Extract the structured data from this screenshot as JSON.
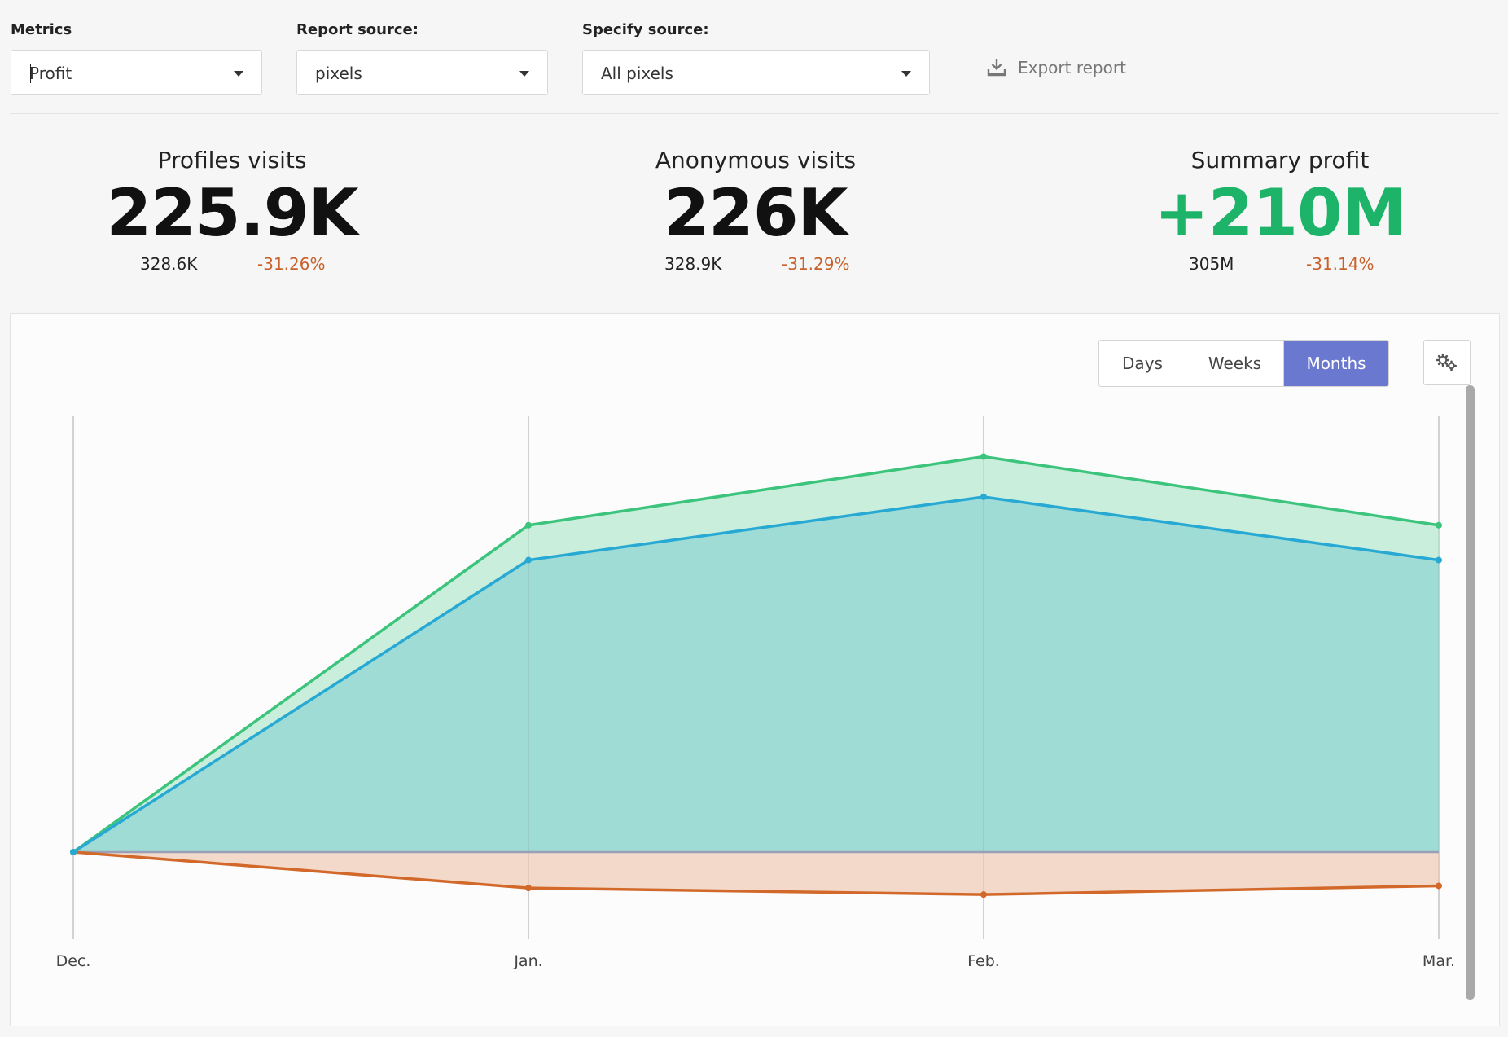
{
  "filters": {
    "metrics": {
      "label": "Metrics",
      "value": "Profit"
    },
    "report_source": {
      "label": "Report source:",
      "value": "pixels"
    },
    "specify_source": {
      "label": "Specify source:",
      "value": "All pixels"
    }
  },
  "export": {
    "label": "Export report",
    "icon": "download-icon"
  },
  "kpis": [
    {
      "title": "Profiles visits",
      "value": "225.9K",
      "previous": "328.6K",
      "change": "-31.26%",
      "value_color": "#111111"
    },
    {
      "title": "Anonymous visits",
      "value": "226K",
      "previous": "328.9K",
      "change": "-31.29%",
      "value_color": "#111111"
    },
    {
      "title": "Summary profit",
      "value": "+210M",
      "previous": "305M",
      "change": "-31.14%",
      "value_color": "#1db46a"
    }
  ],
  "period_toggle": {
    "options": [
      "Days",
      "Weeks",
      "Months"
    ],
    "active": "Months"
  },
  "settings": {
    "icon": "gears-icon"
  },
  "colors": {
    "green": "#3cc47c",
    "blue": "#27a9d4",
    "orange": "#d2692a",
    "accent": "#6b78cf"
  },
  "chart_data": {
    "type": "area",
    "categories": [
      "Dec.",
      "Jan.",
      "Feb.",
      "Mar."
    ],
    "series": [
      {
        "values": [
          0,
          300,
          363,
          300
        ]
      },
      {
        "values": [
          0,
          268,
          326,
          268
        ]
      },
      {
        "values": [
          0,
          -33,
          -39,
          -31
        ]
      }
    ],
    "ylim": [
      -80,
      400
    ],
    "grid": "vertical",
    "legend": "none"
  }
}
